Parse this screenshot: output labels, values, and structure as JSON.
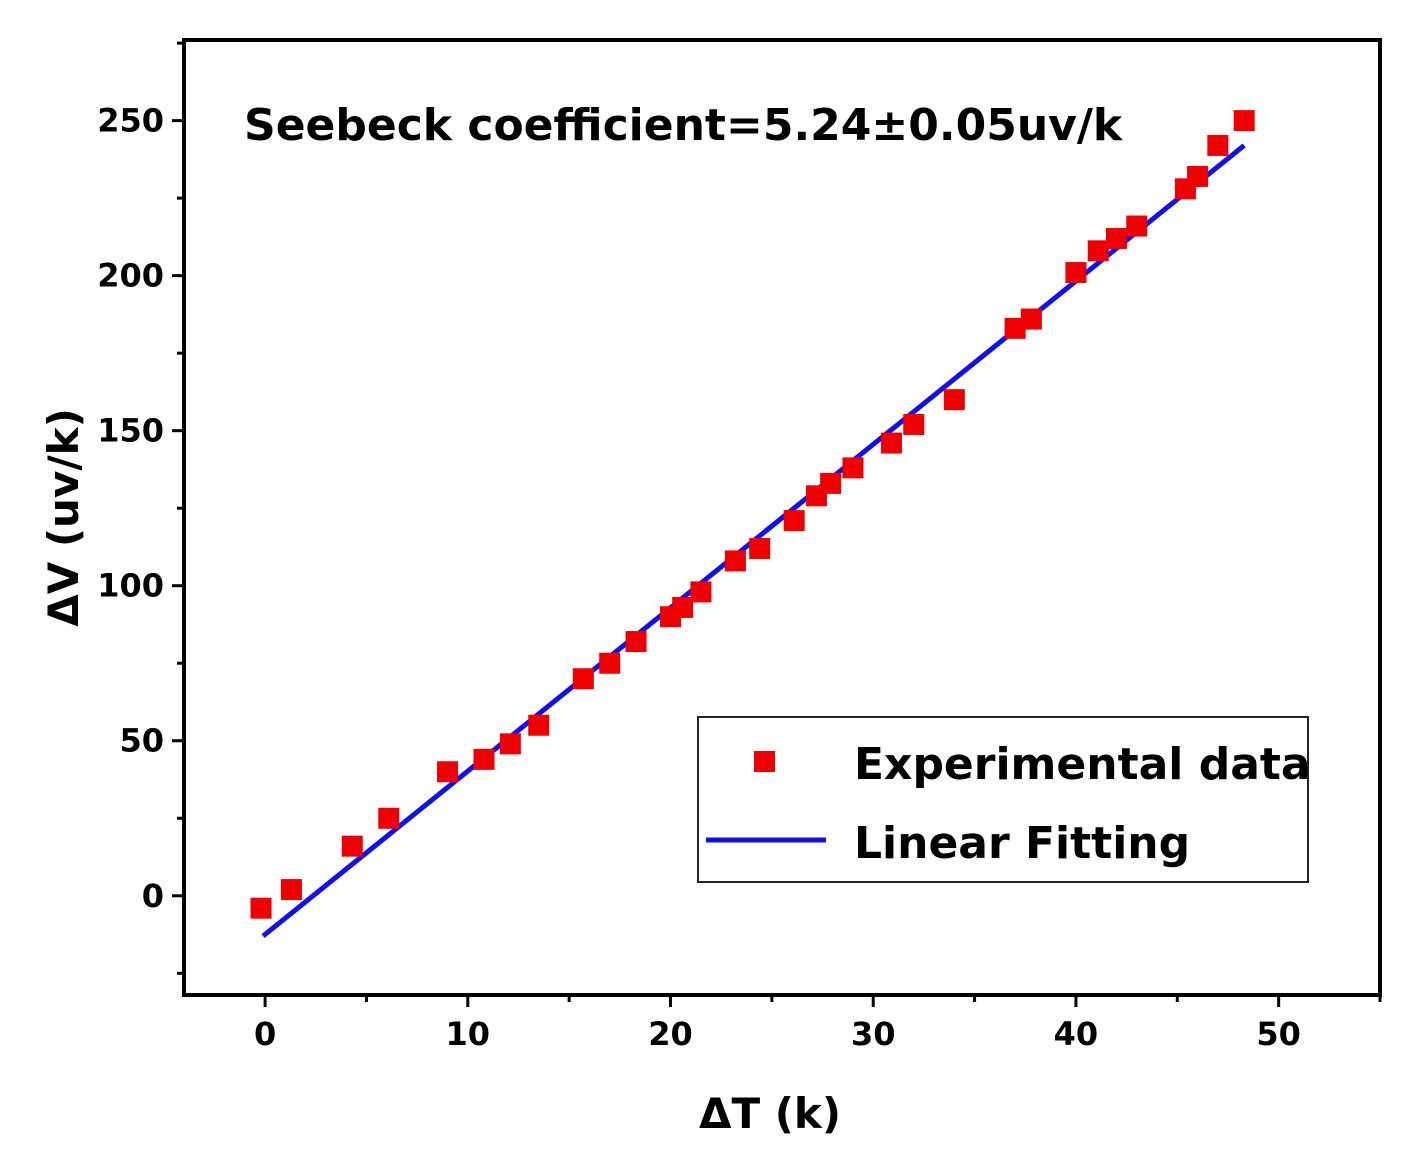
{
  "chart_data": {
    "type": "scatter",
    "title": "",
    "xlabel": "ΔT (k)",
    "ylabel": "ΔV (uv/k)",
    "xlim": [
      -4,
      55
    ],
    "ylim": [
      -32,
      276
    ],
    "xticks": [
      0,
      10,
      20,
      30,
      40,
      50
    ],
    "yticks": [
      0,
      50,
      100,
      150,
      200,
      250
    ],
    "grid": false,
    "annotation": "Seebeck coefficient=5.24±0.05uv/k",
    "legend_position": "bottom-right",
    "series": [
      {
        "name": "Experimental data",
        "kind": "scatter",
        "color": "#ee0000",
        "marker": "square",
        "x": [
          -0.2,
          1.3,
          4.3,
          6.1,
          9.0,
          10.8,
          12.1,
          13.5,
          15.7,
          17.0,
          18.3,
          20.0,
          20.6,
          21.5,
          23.2,
          24.4,
          26.1,
          27.2,
          27.9,
          29.0,
          30.9,
          32.0,
          34.0,
          37.0,
          37.8,
          40.0,
          41.1,
          42.0,
          43.0,
          45.4,
          46.0,
          47.0,
          48.3
        ],
        "y": [
          -4,
          2,
          16,
          25,
          40,
          44,
          49,
          55,
          70,
          75,
          82,
          90,
          93,
          98,
          108,
          112,
          121,
          129,
          133,
          138,
          146,
          152,
          160,
          183,
          186,
          201,
          208,
          212,
          216,
          228,
          232,
          242,
          250
        ]
      },
      {
        "name": "Linear Fitting",
        "kind": "line",
        "color": "#1010ee",
        "x": [
          -0.1,
          48.3
        ],
        "y": [
          -13,
          242
        ]
      }
    ]
  },
  "colors": {
    "axis": "#000000",
    "marker": "#ee0000",
    "fit_line": "#1010ee"
  }
}
